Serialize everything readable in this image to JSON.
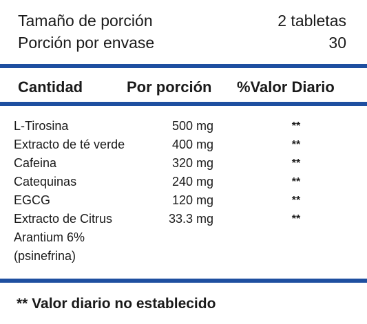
{
  "serving": {
    "size_label": "Tamaño de porción",
    "size_value": "2 tabletas",
    "per_container_label": "Porción por envase",
    "per_container_value": "30"
  },
  "header": {
    "amount": "Cantidad",
    "per_serving": "Por porción",
    "daily_value": "%Valor Diario"
  },
  "rows": [
    {
      "name": "L-Tirosina",
      "amount": "500 mg",
      "dv": "**"
    },
    {
      "name": "Extracto de té verde",
      "amount": "400 mg",
      "dv": "**"
    },
    {
      "name": "Cafeina",
      "amount": "320 mg",
      "dv": "**"
    },
    {
      "name": "Catequinas",
      "amount": "240 mg",
      "dv": "**"
    },
    {
      "name": "EGCG",
      "amount": "120 mg",
      "dv": "**"
    },
    {
      "name": "Extracto de Citrus",
      "amount": "33.3 mg",
      "dv": "**"
    }
  ],
  "row_continuation": [
    "Arantium 6%",
    "(psinefrina)"
  ],
  "footnote": "** Valor diario no establecido",
  "colors": {
    "rule": "#1e4fa0",
    "text": "#1a1a1a"
  }
}
